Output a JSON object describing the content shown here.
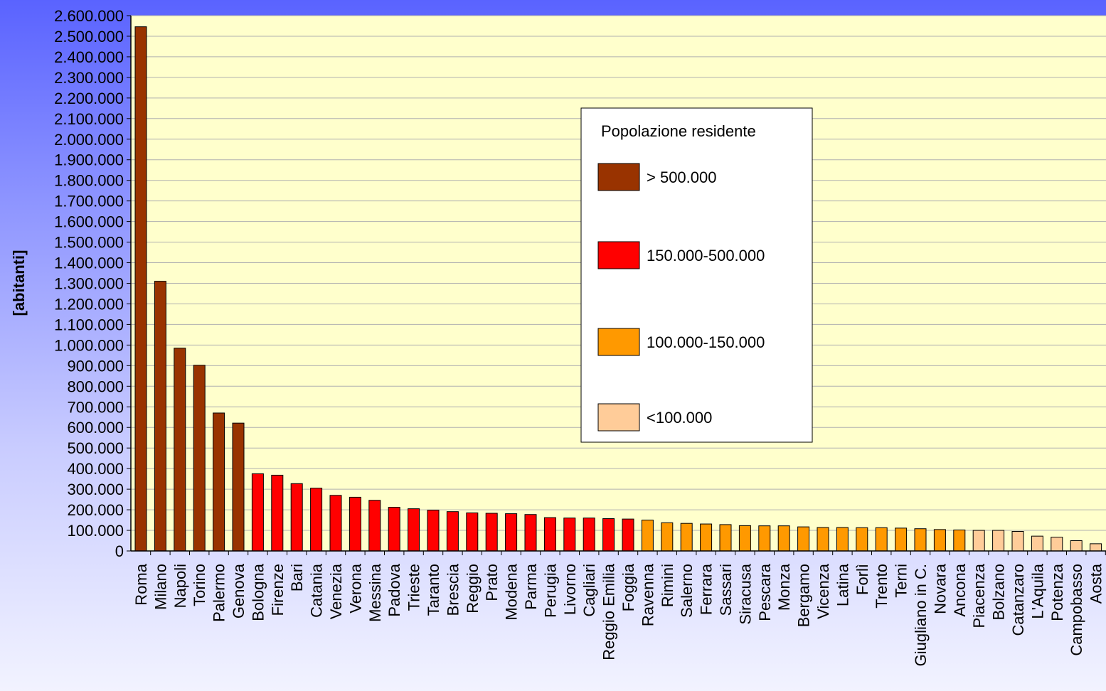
{
  "chart_data": {
    "type": "bar",
    "ylabel": "[abitanti]",
    "ylim": [
      0,
      2600000
    ],
    "ytick_step": 100000,
    "ytick_labels": [
      "0",
      "100.000",
      "200.000",
      "300.000",
      "400.000",
      "500.000",
      "600.000",
      "700.000",
      "800.000",
      "900.000",
      "1.000.000",
      "1.100.000",
      "1.200.000",
      "1.300.000",
      "1.400.000",
      "1.500.000",
      "1.600.000",
      "1.700.000",
      "1.800.000",
      "1.900.000",
      "2.000.000",
      "2.100.000",
      "2.200.000",
      "2.300.000",
      "2.400.000",
      "2.500.000",
      "2.600.000"
    ],
    "grid": true,
    "categories": [
      "Roma",
      "Milano",
      "Napoli",
      "Torino",
      "Palermo",
      "Genova",
      "Bologna",
      "Firenze",
      "Bari",
      "Catania",
      "Venezia",
      "Verona",
      "Messina",
      "Padova",
      "Trieste",
      "Taranto",
      "Brescia",
      "Reggio",
      "Prato",
      "Modena",
      "Parma",
      "Perugia",
      "Livorno",
      "Cagliari",
      "Reggio Emilia",
      "Foggia",
      "Ravenna",
      "Rimini",
      "Salerno",
      "Ferrara",
      "Sassari",
      "Siracusa",
      "Pescara",
      "Monza",
      "Bergamo",
      "Vicenza",
      "Latina",
      "Forlì",
      "Trento",
      "Terni",
      "Giugliano in C.",
      "Novara",
      "Ancona",
      "Piacenza",
      "Bolzano",
      "Catanzaro",
      "L'Aquila",
      "Potenza",
      "Campobasso",
      "Aosta"
    ],
    "values": [
      2546000,
      1310000,
      985000,
      902000,
      670000,
      621000,
      375000,
      368000,
      327000,
      305000,
      270000,
      261000,
      246000,
      212000,
      205000,
      198000,
      191000,
      185000,
      183000,
      181000,
      177000,
      162000,
      160000,
      160000,
      157000,
      155000,
      150000,
      137000,
      134000,
      131000,
      128000,
      123000,
      122000,
      122000,
      117000,
      114000,
      114000,
      113000,
      113000,
      111000,
      108000,
      104000,
      102000,
      100000,
      100000,
      95000,
      72000,
      67000,
      50000,
      35000
    ],
    "groups": [
      5,
      5,
      5,
      5,
      5,
      5,
      4,
      4,
      4,
      4,
      4,
      4,
      4,
      4,
      4,
      4,
      4,
      4,
      4,
      4,
      4,
      4,
      4,
      4,
      4,
      4,
      3,
      3,
      3,
      3,
      3,
      3,
      3,
      3,
      3,
      3,
      3,
      3,
      3,
      3,
      3,
      3,
      3,
      2,
      2,
      2,
      2,
      2,
      2,
      2
    ],
    "legend": {
      "title": "Popolazione residente",
      "position": "top-right",
      "items": [
        {
          "label": "> 500.000",
          "color": "#993300"
        },
        {
          "label": "150.000-500.000",
          "color": "#ff0000"
        },
        {
          "label": "100.000-150.000",
          "color": "#ff9900"
        },
        {
          "label": "<100.000",
          "color": "#ffcc99"
        }
      ]
    },
    "colors": {
      "plot_background": "#ffffcc",
      "gridline": "#b0b0b0",
      "group_5": "#993300",
      "group_4": "#ff0000",
      "group_3": "#ff9900",
      "group_2": "#ffcc99"
    }
  }
}
